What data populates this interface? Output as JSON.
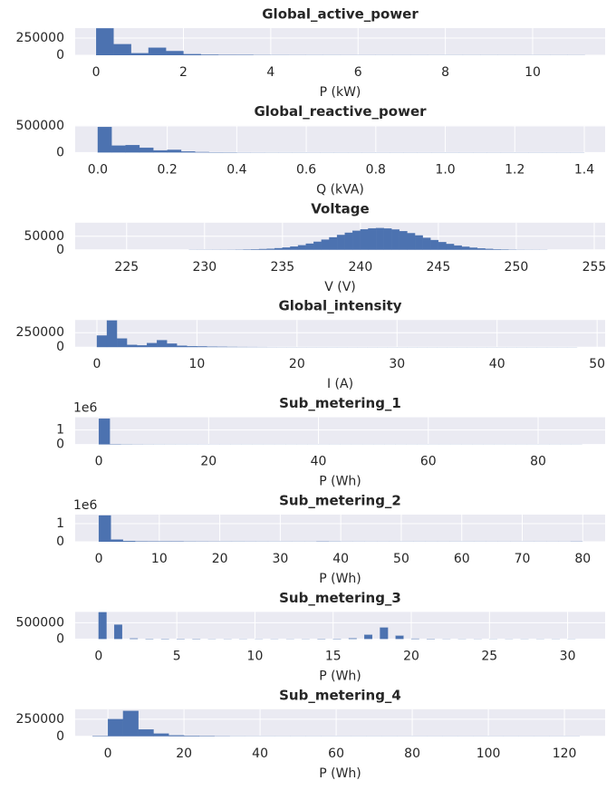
{
  "chart_data": [
    {
      "type": "histogram",
      "title": "Global_active_power",
      "xlabel": "P (kW)",
      "color": "#4c72b0",
      "grid": true,
      "bins": [
        0,
        0.4,
        0.8,
        1.2,
        1.6,
        2,
        2.4,
        2.8,
        3.2,
        3.6,
        4,
        4.4,
        4.8,
        5.2,
        5.6,
        6,
        6.4,
        6.8,
        7.2,
        7.6,
        8,
        8.4,
        8.8,
        9.2,
        9.6,
        10,
        10.4,
        10.8,
        11.2
      ],
      "values": [
        390000,
        160000,
        30000,
        110000,
        60000,
        15000,
        7000,
        4000,
        2000,
        1000,
        600,
        400,
        300,
        200,
        150,
        100,
        80,
        60,
        40,
        30,
        20,
        15,
        10,
        8,
        5,
        3,
        2,
        1
      ],
      "xlim": [
        -0.48,
        11.66
      ],
      "xticks": [
        0,
        2,
        4,
        6,
        8,
        10
      ],
      "ylim": [
        0,
        395000
      ],
      "yticks": [
        0,
        250000
      ]
    },
    {
      "type": "histogram",
      "title": "Global_reactive_power",
      "xlabel": "Q (kVA)",
      "color": "#4c72b0",
      "grid": true,
      "bins": [
        0,
        0.04,
        0.08,
        0.12,
        0.16,
        0.2,
        0.24,
        0.28,
        0.32,
        0.36,
        0.4,
        0.44,
        0.48,
        0.52,
        0.56,
        0.6,
        0.64,
        0.68,
        0.72,
        0.76,
        0.8,
        0.84,
        0.88,
        0.92,
        0.96,
        1,
        1.04,
        1.08,
        1.12,
        1.16,
        1.2,
        1.24,
        1.28,
        1.32,
        1.36,
        1.4
      ],
      "values": [
        480000,
        130000,
        140000,
        90000,
        40000,
        50000,
        20000,
        8000,
        4000,
        1500,
        800,
        500,
        300,
        200,
        150,
        100,
        80,
        60,
        50,
        40,
        30,
        25,
        20,
        15,
        10,
        8,
        6,
        5,
        4,
        3,
        2,
        2,
        1,
        1,
        1
      ],
      "xlim": [
        -0.065,
        1.46
      ],
      "xticks": [
        {
          "value": 0,
          "label": "0.0"
        },
        0.2,
        0.4,
        0.6,
        0.8,
        {
          "value": 1,
          "label": "1.0"
        },
        1.2,
        1.4
      ],
      "ylim": [
        0,
        510000
      ],
      "yticks": [
        0,
        500000
      ]
    },
    {
      "type": "histogram",
      "title": "Voltage",
      "xlabel": "V (V)",
      "color": "#4c72b0",
      "grid": true,
      "bins": [
        229,
        229.5,
        230,
        230.5,
        231,
        231.5,
        232,
        232.5,
        233,
        233.5,
        234,
        234.5,
        235,
        235.5,
        236,
        236.5,
        237,
        237.5,
        238,
        238.5,
        239,
        239.5,
        240,
        240.5,
        241,
        241.5,
        242,
        242.5,
        243,
        243.5,
        244,
        244.5,
        245,
        245.5,
        246,
        246.5,
        247,
        247.5,
        248,
        248.5,
        249,
        249.5,
        250,
        250.5,
        251,
        251.5,
        252
      ],
      "values": [
        100,
        200,
        300,
        400,
        500,
        600,
        800,
        1200,
        2000,
        2800,
        4000,
        6000,
        8350,
        12100,
        16800,
        22700,
        29600,
        37500,
        46000,
        54600,
        62800,
        70000,
        75500,
        79000,
        80000,
        78500,
        74600,
        68700,
        61200,
        52900,
        44200,
        35900,
        28200,
        21400,
        15800,
        11200,
        7800,
        5200,
        3400,
        2100,
        1300,
        800,
        500,
        300,
        200,
        100
      ],
      "xlim": [
        221.7,
        255.7
      ],
      "xticks": [
        225,
        230,
        235,
        240,
        245,
        250,
        255
      ],
      "ylim": [
        0,
        100000
      ],
      "yticks": [
        0,
        50000
      ]
    },
    {
      "type": "histogram",
      "title": "Global_intensity",
      "xlabel": "I (A)",
      "color": "#4c72b0",
      "grid": true,
      "bins": [
        0,
        1,
        2,
        3,
        4,
        5,
        6,
        7,
        8,
        9,
        10,
        11,
        12,
        13,
        14,
        15,
        16,
        17,
        18,
        19,
        20,
        21,
        22,
        23,
        24,
        25,
        26,
        27,
        28,
        29,
        30,
        31,
        32,
        33,
        34,
        35,
        36,
        37,
        38,
        39,
        40,
        41,
        42,
        43,
        44,
        45,
        46,
        47,
        48
      ],
      "values": [
        200000,
        460000,
        150000,
        40000,
        30000,
        70000,
        120000,
        60000,
        25000,
        15000,
        12000,
        8000,
        5000,
        3500,
        2500,
        2000,
        1500,
        800,
        500,
        400,
        300,
        250,
        200,
        150,
        120,
        100,
        80,
        60,
        50,
        40,
        30,
        25,
        20,
        15,
        12,
        10,
        8,
        6,
        5,
        4,
        3,
        3,
        2,
        2,
        1,
        1,
        1,
        1
      ],
      "xlim": [
        -2.17,
        50.8
      ],
      "xticks": [
        0,
        10,
        20,
        30,
        40,
        50
      ],
      "ylim": [
        0,
        470000
      ],
      "yticks": [
        0,
        250000
      ]
    },
    {
      "type": "histogram",
      "title": "Sub_metering_1",
      "xlabel": "P (Wh)",
      "color": "#4c72b0",
      "grid": true,
      "y_offset_text": "1e6",
      "bins": [
        0,
        2,
        4,
        6,
        8,
        10,
        12,
        14,
        16,
        18,
        20,
        22,
        24,
        26,
        28,
        30,
        32,
        34,
        36,
        38,
        40,
        42,
        44,
        46,
        48,
        50,
        52,
        54,
        56,
        58,
        60,
        62,
        64,
        66,
        68,
        70,
        72,
        74,
        76,
        78,
        80,
        82,
        84,
        86,
        88
      ],
      "values": [
        1780000,
        15000,
        8000,
        5000,
        3000,
        2000,
        1500,
        1200,
        1000,
        800,
        600,
        500,
        400,
        300,
        200,
        150,
        100,
        80,
        60,
        50,
        40,
        30,
        25,
        20,
        15,
        12,
        10,
        8,
        6,
        5,
        4,
        3,
        3,
        2,
        2,
        1,
        1,
        1,
        1,
        1,
        1,
        1,
        1,
        1
      ],
      "xlim": [
        -4.3,
        92.2
      ],
      "xticks": [
        0,
        20,
        40,
        60,
        80
      ],
      "ylim": [
        0,
        1875000
      ],
      "yticks": [
        0,
        {
          "value": 1000000,
          "label": "1"
        }
      ]
    },
    {
      "type": "histogram",
      "title": "Sub_metering_2",
      "xlabel": "P (Wh)",
      "color": "#4c72b0",
      "grid": true,
      "y_offset_text": "1e6",
      "bins": [
        0,
        2,
        4,
        6,
        8,
        10,
        12,
        14,
        16,
        18,
        20,
        22,
        24,
        26,
        28,
        30,
        32,
        34,
        36,
        38,
        40,
        42,
        44,
        46,
        48,
        50,
        52,
        54,
        56,
        58,
        60,
        62,
        64,
        66,
        68,
        70,
        72,
        74,
        76,
        78,
        80
      ],
      "values": [
        1450000,
        120000,
        40000,
        20000,
        15000,
        10000,
        8000,
        6000,
        5000,
        4000,
        3000,
        2500,
        2000,
        1500,
        1200,
        1000,
        900,
        800,
        7000,
        3000,
        600,
        400,
        300,
        200,
        150,
        100,
        80,
        60,
        50,
        40,
        30,
        20,
        15,
        10,
        8,
        6,
        4,
        3,
        2,
        1
      ],
      "xlim": [
        -3.9,
        83.7
      ],
      "xticks": [
        0,
        10,
        20,
        30,
        40,
        50,
        60,
        70,
        80
      ],
      "ylim": [
        0,
        1500000
      ],
      "yticks": [
        0,
        {
          "value": 1000000,
          "label": "1"
        }
      ]
    },
    {
      "type": "histogram",
      "title": "Sub_metering_3",
      "xlabel": "P (Wh)",
      "color": "#4c72b0",
      "grid": true,
      "bins": [
        0,
        0.5,
        1,
        1.5,
        2,
        2.5,
        3,
        3.5,
        4,
        4.5,
        5,
        5.5,
        6,
        6.5,
        7,
        7.5,
        8,
        8.5,
        9,
        9.5,
        10,
        10.5,
        11,
        11.5,
        12,
        12.5,
        13,
        13.5,
        14,
        14.5,
        15,
        15.5,
        16,
        16.5,
        17,
        17.5,
        18,
        18.5,
        19,
        19.5,
        20,
        20.5,
        21,
        21.5,
        22,
        22.5,
        23,
        23.5,
        24,
        24.5,
        25,
        25.5,
        26,
        26.5,
        27,
        27.5,
        28,
        28.5,
        29,
        29.5,
        30,
        30.5,
        31
      ],
      "values": [
        820000,
        0,
        440000,
        0,
        15000,
        0,
        5000,
        0,
        3000,
        0,
        2000,
        0,
        1500,
        0,
        1000,
        0,
        900,
        0,
        800,
        0,
        700,
        0,
        700,
        0,
        800,
        0,
        900,
        0,
        1500,
        0,
        3000,
        0,
        20000,
        0,
        130000,
        0,
        350000,
        0,
        100000,
        0,
        10000,
        0,
        2000,
        0,
        800,
        0,
        400,
        0,
        200,
        0,
        100,
        0,
        50,
        0,
        30,
        0,
        20,
        0,
        10,
        0,
        5,
        0
      ],
      "xlim": [
        -1.5,
        32.4
      ],
      "xticks": [
        0,
        5,
        10,
        15,
        20,
        25,
        30
      ],
      "ylim": [
        0,
        833000
      ],
      "yticks": [
        0,
        500000
      ]
    },
    {
      "type": "histogram",
      "title": "Sub_metering_4",
      "xlabel": "P (Wh)",
      "color": "#4c72b0",
      "grid": true,
      "bins": [
        -4,
        0,
        4,
        8,
        12,
        16,
        20,
        24,
        28,
        32,
        36,
        40,
        44,
        48,
        52,
        56,
        60,
        64,
        68,
        72,
        76,
        80,
        84,
        88,
        92,
        96,
        100,
        104,
        108,
        112,
        116,
        120,
        124
      ],
      "values": [
        5000,
        250000,
        370000,
        100000,
        40000,
        15000,
        8000,
        5000,
        3000,
        1500,
        1000,
        500,
        300,
        200,
        150,
        100,
        80,
        60,
        40,
        30,
        20,
        15,
        10,
        8,
        6,
        5,
        4,
        3,
        2,
        2,
        1,
        1
      ],
      "xlim": [
        -8.6,
        130.7
      ],
      "xticks": [
        0,
        20,
        40,
        60,
        80,
        100,
        120
      ],
      "ylim": [
        0,
        395000
      ],
      "yticks": [
        0,
        250000
      ]
    }
  ]
}
